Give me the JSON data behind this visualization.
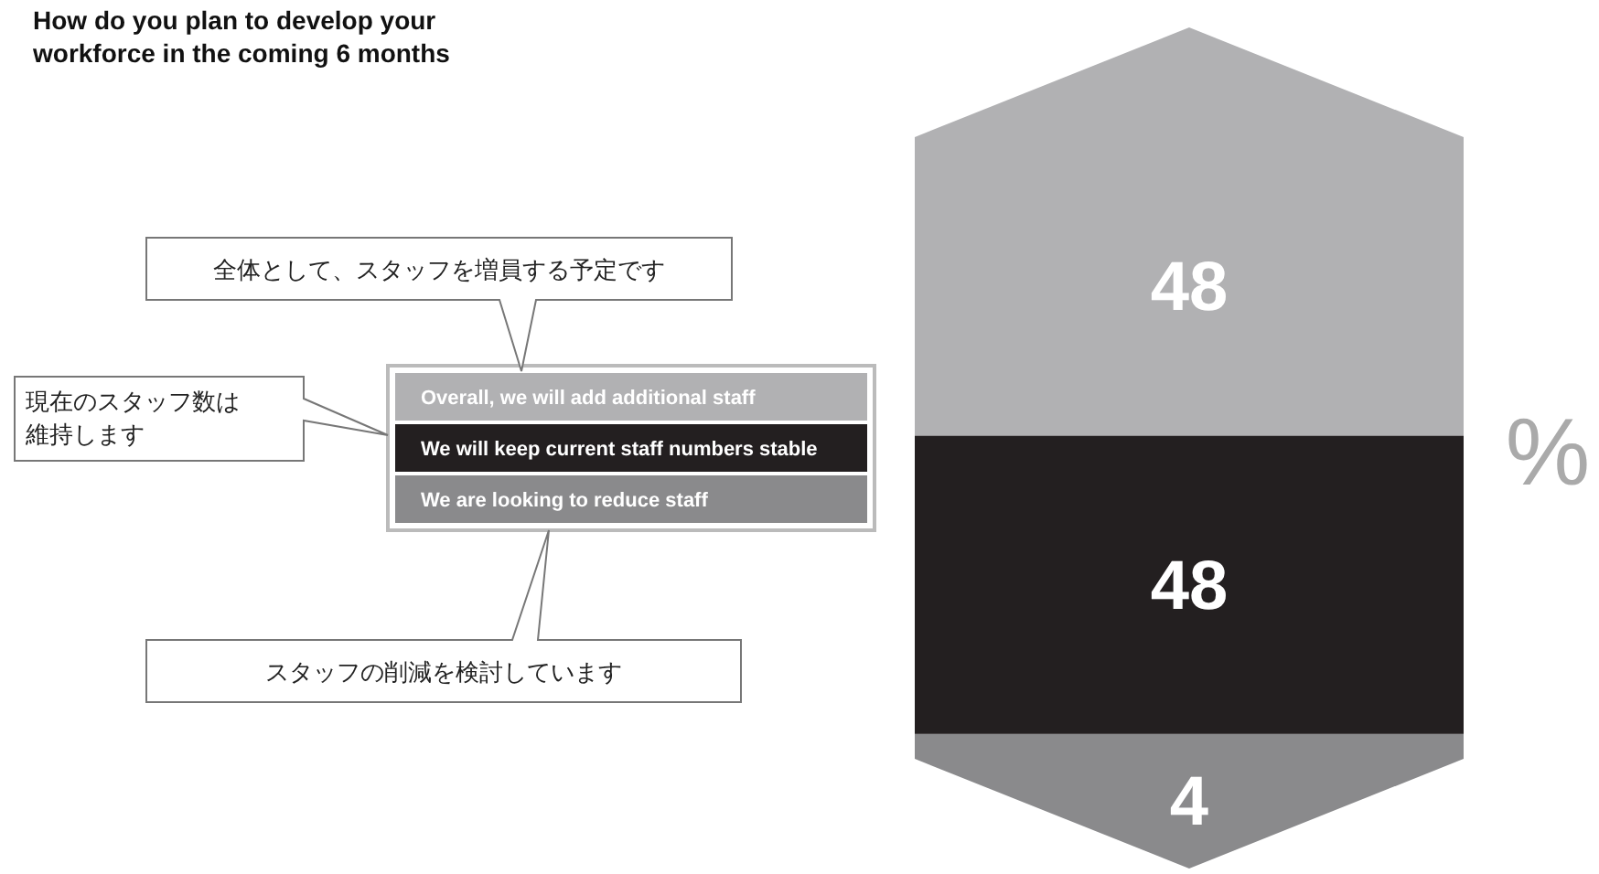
{
  "chart_data": {
    "type": "bar",
    "stacked": true,
    "title": "How do you plan to develop your workforce in the coming 6 months",
    "categories": [
      null
    ],
    "series": [
      {
        "name": "We are looking to reduce staff",
        "color": "#8a8a8c",
        "values": [
          4
        ]
      },
      {
        "name": "We will keep current staff numbers stable",
        "color": "#231f20",
        "values": [
          48
        ]
      },
      {
        "name": "Overall, we will add additional staff",
        "color": "#b1b1b3",
        "values": [
          48
        ]
      }
    ],
    "data_labels": true,
    "legend": "left",
    "annotations": [
      "全体として、スタッフを増員する予定です",
      "現在のスタッフ数は維持します",
      "スタッフの削減を検討しています",
      "%"
    ]
  }
}
